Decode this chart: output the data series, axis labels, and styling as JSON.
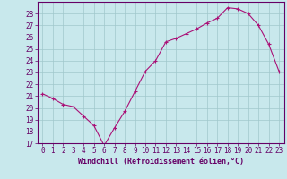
{
  "x": [
    0,
    1,
    2,
    3,
    4,
    5,
    6,
    7,
    8,
    9,
    10,
    11,
    12,
    13,
    14,
    15,
    16,
    17,
    18,
    19,
    20,
    21,
    22,
    23
  ],
  "y": [
    21.2,
    20.8,
    20.3,
    20.1,
    19.3,
    18.5,
    16.8,
    18.3,
    19.7,
    21.4,
    23.1,
    24.0,
    25.6,
    25.9,
    26.3,
    26.7,
    27.2,
    27.6,
    28.5,
    28.4,
    28.0,
    27.0,
    25.4,
    23.1
  ],
  "line_color": "#aa1177",
  "marker": "+",
  "bg_color": "#c8e8ec",
  "grid_color": "#a0c8cc",
  "xlabel": "Windchill (Refroidissement éolien,°C)",
  "ylabel": "",
  "ylim": [
    17,
    29
  ],
  "xlim": [
    -0.5,
    23.5
  ],
  "yticks": [
    17,
    18,
    19,
    20,
    21,
    22,
    23,
    24,
    25,
    26,
    27,
    28
  ],
  "xticks": [
    0,
    1,
    2,
    3,
    4,
    5,
    6,
    7,
    8,
    9,
    10,
    11,
    12,
    13,
    14,
    15,
    16,
    17,
    18,
    19,
    20,
    21,
    22,
    23
  ],
  "axis_color": "#660066",
  "label_fontsize": 6.0,
  "tick_fontsize": 5.5
}
